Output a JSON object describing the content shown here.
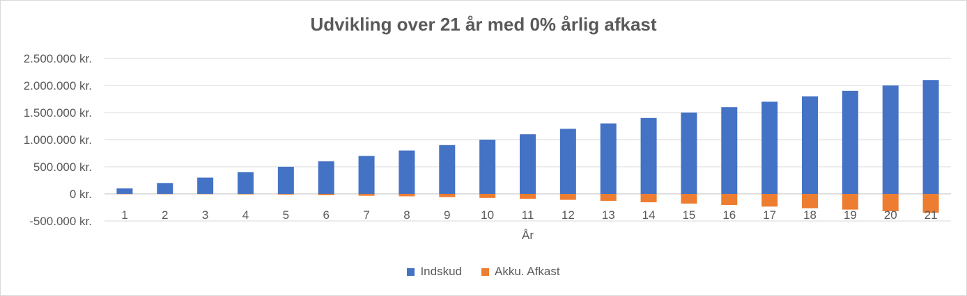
{
  "chart_data": {
    "type": "bar",
    "title": "Udvikling over 21 år med 0% årlig afkast",
    "xlabel": "År",
    "ylabel": "",
    "ylim": [
      -500000,
      2500000
    ],
    "ytick_values": [
      -500000,
      0,
      500000,
      1000000,
      1500000,
      2000000,
      2500000
    ],
    "ytick_labels": [
      "-500.000 kr.",
      "0 kr.",
      "500.000 kr.",
      "1.000.000 kr.",
      "1.500.000 kr.",
      "2.000.000 kr.",
      "2.500.000 kr."
    ],
    "categories": [
      "1",
      "2",
      "3",
      "4",
      "5",
      "6",
      "7",
      "8",
      "9",
      "10",
      "11",
      "12",
      "13",
      "14",
      "15",
      "16",
      "17",
      "18",
      "19",
      "20",
      "21"
    ],
    "series": [
      {
        "name": "Indskud",
        "color": "#4472c4",
        "values": [
          100000,
          200000,
          300000,
          400000,
          500000,
          600000,
          700000,
          800000,
          900000,
          1000000,
          1100000,
          1200000,
          1300000,
          1400000,
          1500000,
          1600000,
          1700000,
          1800000,
          1900000,
          2000000,
          2100000
        ]
      },
      {
        "name": "Akku. Afkast",
        "color": "#ed7d31",
        "values": [
          -2000,
          -4000,
          -6000,
          -10000,
          -15000,
          -25000,
          -35000,
          -45000,
          -60000,
          -75000,
          -90000,
          -110000,
          -130000,
          -155000,
          -180000,
          -205000,
          -235000,
          -265000,
          -290000,
          -320000,
          -350000
        ]
      }
    ],
    "legend_position": "bottom",
    "grid": true
  }
}
